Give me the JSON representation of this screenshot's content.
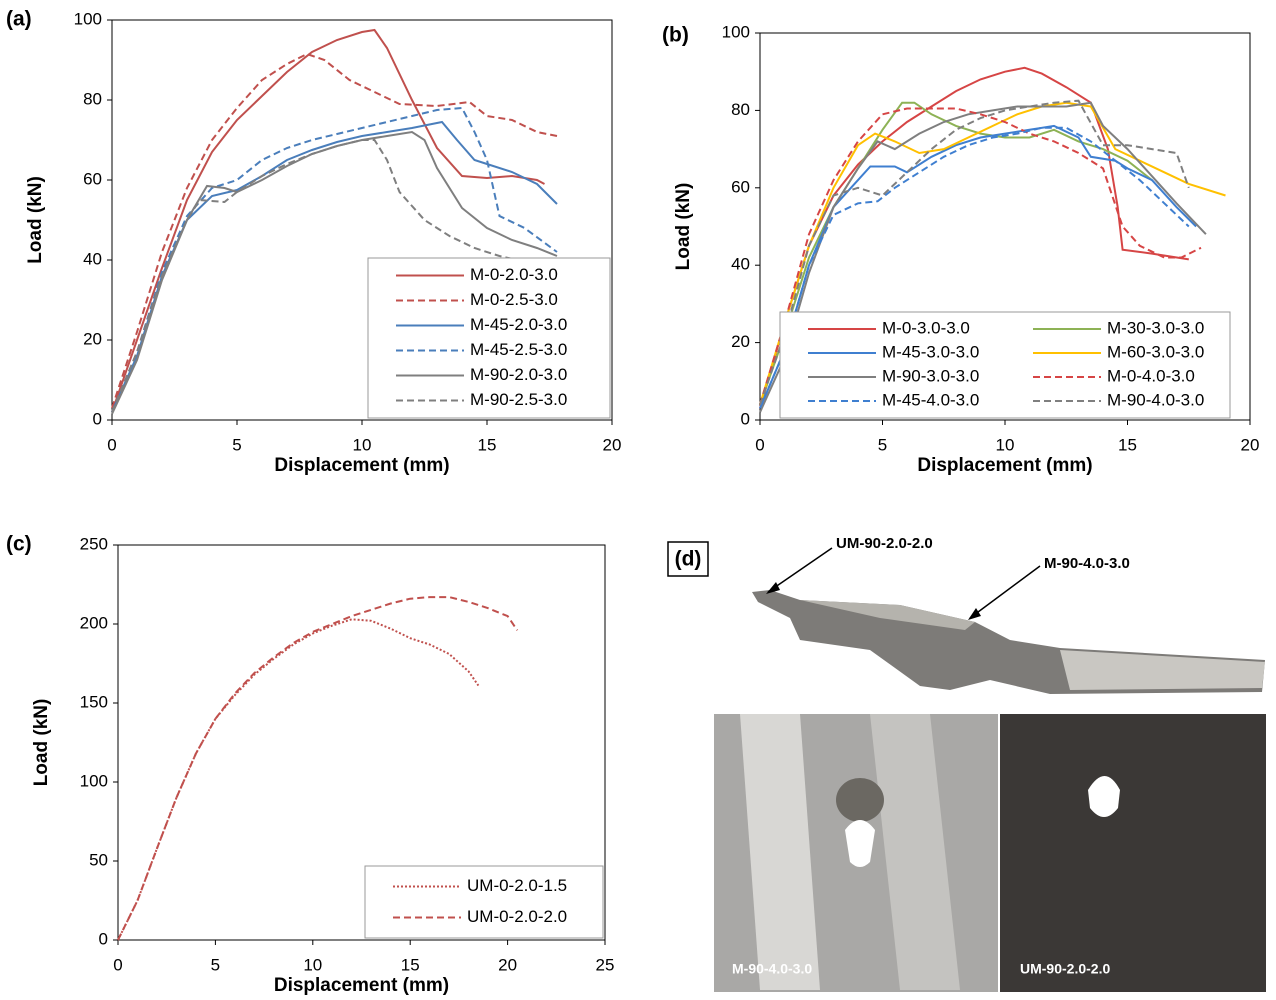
{
  "chart_data": [
    {
      "type": "line",
      "panel_label": "(a)",
      "xlabel": "Displacement (mm)",
      "ylabel": "Load (kN)",
      "xlim": [
        0,
        20
      ],
      "ylim": [
        0,
        100
      ],
      "xticks": [
        0,
        5,
        10,
        15,
        20
      ],
      "yticks": [
        0,
        20,
        40,
        60,
        80,
        100
      ],
      "legend": "lower right",
      "legend_columns": 1,
      "series": [
        {
          "name": "M-0-2.0-3.0",
          "color": "#c0504d",
          "line_style": "solid",
          "x": [
            0,
            1,
            2,
            3,
            4,
            5,
            6,
            7,
            8,
            9,
            10,
            10.5,
            11,
            12,
            13,
            14,
            15,
            16,
            17,
            17.3
          ],
          "values": [
            2,
            20,
            38,
            55,
            67,
            75,
            81,
            87,
            92,
            95,
            97,
            97.5,
            93,
            80,
            68,
            61,
            60.5,
            61,
            60,
            59
          ]
        },
        {
          "name": "M-0-2.5-3.0",
          "color": "#c0504d",
          "line_style": "dashed",
          "x": [
            0,
            1,
            2,
            3,
            4,
            5,
            6,
            7,
            7.8,
            8.5,
            9.5,
            10.5,
            11.5,
            13,
            14.3,
            15,
            16,
            17,
            17.8
          ],
          "values": [
            3,
            22,
            42,
            58,
            70,
            78,
            85,
            89,
            91.5,
            90,
            85,
            82,
            79,
            78.5,
            79.5,
            76,
            75,
            72,
            71
          ]
        },
        {
          "name": "M-45-2.0-3.0",
          "color": "#4a7ebb",
          "line_style": "solid",
          "x": [
            0,
            1,
            2,
            3,
            4,
            5,
            6,
            7,
            8,
            9,
            10,
            11,
            12,
            13.2,
            13.8,
            14.5,
            15,
            16,
            17,
            17.8
          ],
          "values": [
            2,
            16,
            36,
            50,
            56,
            57.5,
            61,
            65,
            67.5,
            69.5,
            71,
            72,
            73,
            74.5,
            70,
            65,
            64,
            62,
            59,
            54
          ]
        },
        {
          "name": "M-45-2.5-3.0",
          "color": "#4a7ebb",
          "line_style": "dashed",
          "x": [
            0,
            1,
            2,
            3,
            4,
            5,
            6,
            7,
            8,
            9,
            10,
            11,
            12,
            13,
            14,
            14.5,
            15,
            15.5,
            16.5,
            17.8
          ],
          "values": [
            2,
            17,
            37,
            51,
            58,
            60,
            65,
            68,
            70,
            71.5,
            73,
            74.5,
            76,
            77.5,
            78,
            72,
            65,
            51,
            48,
            42
          ]
        },
        {
          "name": "M-90-2.0-3.0",
          "color": "#7f7f7f",
          "line_style": "solid",
          "x": [
            0,
            1,
            2,
            3,
            3.8,
            4.5,
            5,
            6,
            7,
            8,
            9,
            10,
            11,
            12,
            12.5,
            13,
            14,
            15,
            16,
            17,
            17.8
          ],
          "values": [
            1.5,
            15,
            35,
            50,
            58.5,
            58,
            57,
            60,
            63.5,
            66.5,
            68.5,
            70,
            71,
            72,
            70,
            63,
            53,
            48,
            45,
            43,
            41
          ]
        },
        {
          "name": "M-90-2.5-3.0",
          "color": "#7f7f7f",
          "line_style": "dashed",
          "x": [
            0,
            1,
            2,
            3,
            3.5,
            4.5,
            5,
            6,
            7,
            8,
            9,
            10,
            10.5,
            11,
            11.5,
            12.5,
            13.5,
            14.5,
            15.5,
            16.2
          ],
          "values": [
            2,
            17,
            36,
            50,
            55,
            54.5,
            57,
            61,
            64,
            66.5,
            68.5,
            70,
            70,
            65,
            57,
            50,
            46,
            43,
            41,
            40
          ]
        }
      ]
    },
    {
      "type": "line",
      "panel_label": "(b)",
      "xlabel": "Displacement (mm)",
      "ylabel": "Load (kN)",
      "xlim": [
        0,
        20
      ],
      "ylim": [
        0,
        100
      ],
      "xticks": [
        0,
        5,
        10,
        15,
        20
      ],
      "yticks": [
        0,
        20,
        40,
        60,
        80,
        100
      ],
      "legend": "lower center",
      "legend_columns": 2,
      "series": [
        {
          "name": "M-0-3.0-3.0",
          "color": "#d64545",
          "line_style": "solid",
          "x": [
            0,
            1,
            2,
            3,
            4,
            5,
            6,
            7,
            8,
            9,
            10,
            10.8,
            11.5,
            12.5,
            13.5,
            14.2,
            14.6,
            14.8,
            16,
            17.5
          ],
          "values": [
            3,
            25,
            45,
            58,
            66,
            72,
            77,
            81,
            85,
            88,
            90,
            91,
            89.5,
            86,
            82,
            70,
            55,
            44,
            43,
            41.5
          ]
        },
        {
          "name": "M-30-3.0-3.0",
          "color": "#8db255",
          "line_style": "solid",
          "x": [
            0,
            1,
            2,
            3,
            4,
            5,
            5.8,
            6.3,
            7,
            8,
            9,
            10,
            11,
            12,
            13,
            14,
            15,
            16
          ],
          "values": [
            4,
            22,
            42,
            55,
            65,
            75,
            82,
            82,
            79,
            76,
            74,
            73,
            73,
            75,
            72,
            70,
            67,
            62
          ]
        },
        {
          "name": "M-45-3.0-3.0",
          "color": "#3f7fd0",
          "line_style": "solid",
          "x": [
            0,
            1,
            2,
            3,
            4,
            4.5,
            5.5,
            6,
            7,
            8,
            9,
            10,
            11,
            12,
            13,
            13.5,
            14.5,
            15,
            16,
            17,
            17.8
          ],
          "values": [
            3,
            18,
            40,
            55,
            62,
            65.5,
            65.5,
            64,
            68,
            71,
            73,
            74,
            75,
            76,
            73,
            68,
            67,
            65,
            62,
            55,
            50
          ]
        },
        {
          "name": "M-60-3.0-3.0",
          "color": "#ffc000",
          "line_style": "solid",
          "x": [
            0,
            1,
            2,
            3,
            4,
            4.7,
            5.5,
            6.5,
            7.5,
            8.5,
            9.5,
            10.5,
            11.5,
            12.5,
            13.5,
            14.5,
            15.5,
            16.5,
            17.5,
            19
          ],
          "values": [
            4,
            25,
            45,
            60,
            71,
            74,
            72,
            69,
            70,
            73,
            76,
            79,
            81,
            82,
            81,
            70,
            67,
            64,
            61,
            58
          ]
        },
        {
          "name": "M-90-3.0-3.0",
          "color": "#7f7f7f",
          "line_style": "solid",
          "x": [
            0,
            1,
            2,
            3,
            4,
            4.8,
            5.5,
            6.5,
            7.5,
            8.5,
            9.5,
            10.5,
            11.5,
            12.5,
            13.5,
            14,
            15,
            16,
            17,
            18.2
          ],
          "values": [
            2,
            16,
            38,
            55,
            65,
            72,
            70,
            74,
            77,
            79,
            80,
            81,
            81,
            81,
            82,
            76,
            70,
            63,
            56,
            48
          ]
        },
        {
          "name": "M-0-4.0-3.0",
          "color": "#d64545",
          "line_style": "dashed",
          "x": [
            0,
            1,
            2,
            3,
            4,
            5,
            6,
            7,
            8,
            9,
            10,
            11,
            12,
            13,
            14,
            14.8,
            15.5,
            16.5,
            17.2,
            18
          ],
          "values": [
            4,
            25,
            48,
            62,
            72,
            79,
            80.5,
            80.5,
            80.5,
            79,
            77,
            74,
            72,
            69,
            65,
            50,
            45,
            42,
            42,
            44.5
          ]
        },
        {
          "name": "M-45-4.0-3.0",
          "color": "#3f7fd0",
          "line_style": "dashed",
          "x": [
            0,
            1,
            2,
            3,
            4,
            4.8,
            5.5,
            6.5,
            7.5,
            8.5,
            9.5,
            10.5,
            11.5,
            12.5,
            13.5,
            14.5,
            15.5,
            16.5,
            17.5
          ],
          "values": [
            3,
            18,
            40,
            53,
            56,
            56.5,
            60,
            64,
            68,
            71,
            73,
            74,
            75.5,
            75.5,
            72,
            67,
            62,
            56,
            50
          ]
        },
        {
          "name": "M-90-4.0-3.0",
          "color": "#7f7f7f",
          "line_style": "dashed",
          "x": [
            0,
            1,
            2,
            3,
            4,
            5,
            6,
            7,
            8,
            9,
            10,
            11,
            12,
            13,
            14,
            15,
            16,
            17,
            17.5
          ],
          "values": [
            4,
            22,
            45,
            58,
            60,
            58,
            64,
            70,
            75,
            78,
            80,
            81,
            82,
            82.5,
            71,
            71,
            70,
            69,
            60
          ]
        }
      ]
    },
    {
      "type": "line",
      "panel_label": "(c)",
      "xlabel": "Displacement (mm)",
      "ylabel": "Load (kN)",
      "xlim": [
        0,
        25
      ],
      "ylim": [
        0,
        250
      ],
      "xticks": [
        0,
        5,
        10,
        15,
        20,
        25
      ],
      "yticks": [
        0,
        50,
        100,
        150,
        200,
        250
      ],
      "legend": "lower right",
      "legend_columns": 1,
      "series": [
        {
          "name": "UM-0-2.0-1.5",
          "color": "#c0504d",
          "line_style": "dotted",
          "x": [
            0,
            1,
            2,
            3,
            4,
            5,
            6,
            7,
            8,
            9,
            10,
            11,
            12,
            13,
            14,
            15,
            16,
            17,
            18,
            18.5
          ],
          "values": [
            0,
            25,
            58,
            90,
            118,
            140,
            155,
            168,
            178,
            187,
            194,
            199,
            203,
            202,
            197,
            191,
            187,
            181,
            170,
            161
          ]
        },
        {
          "name": "UM-0-2.0-2.0",
          "color": "#c0504d",
          "line_style": "dashed",
          "x": [
            0,
            1,
            2,
            3,
            4,
            5,
            6,
            7,
            8,
            9,
            10,
            11,
            12,
            13,
            14,
            15,
            16,
            17,
            18,
            19,
            20,
            20.5
          ],
          "values": [
            0,
            25,
            58,
            90,
            118,
            140,
            156,
            169,
            179,
            188,
            195,
            200,
            205,
            209,
            213,
            216,
            217,
            217,
            214,
            210,
            205,
            196
          ]
        }
      ]
    }
  ],
  "photo_panel": {
    "panel_label": "(d)",
    "top_annotations": [
      "UM-90-2.0-2.0",
      "M-90-4.0-3.0"
    ],
    "bottom_labels": [
      "M-90-4.0-3.0",
      "UM-90-2.0-2.0"
    ]
  }
}
